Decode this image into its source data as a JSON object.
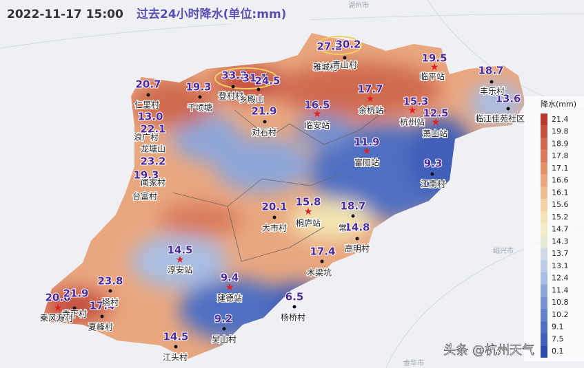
{
  "header": {
    "time": "2022-11-17 15:00",
    "title": "过去24小时降水(单位:mm)"
  },
  "background_labels": [
    "湖州市",
    "绍兴市",
    "金华市"
  ],
  "station_values": [
    "27.2",
    "30.2",
    "19.5",
    "18.7",
    "20.7",
    "19.3",
    "33.3",
    "31.1",
    "24.5",
    "21.9",
    "16.5",
    "17.7",
    "15.3",
    "12.5",
    "13.6",
    "13.0",
    "22.1",
    "11.9",
    "23.2",
    "9.3",
    "19.3",
    "20.1",
    "15.8",
    "18.7",
    "14.8",
    "14.5",
    "17.4",
    "9.4",
    "23.8",
    "20.6",
    "21.9",
    "17.4",
    "6.5",
    "9.2",
    "14.5"
  ],
  "station_names": [
    "雅城村",
    "青山村",
    "临平站",
    "丰乐村",
    "仁里村",
    "千顷塘",
    "登村村",
    "乡殿山",
    "对石村",
    "临安站",
    "余杭站",
    "杭州站",
    "萧山站",
    "临江佳苑社区",
    "浪广村",
    "龙塘山",
    "富阳站",
    "江南村",
    "闻家村",
    "台富村",
    "大市村",
    "桐庐站",
    "常",
    "高明村",
    "淳安站",
    "木梁坑",
    "建德站",
    "塔村",
    "乘风源村",
    "寺下村",
    "夏峰村",
    "杨桥村",
    "吴山村",
    "江头村"
  ],
  "legend": {
    "title": "降水(mm)",
    "levels": [
      "21.4",
      "19.8",
      "18.9",
      "17.8",
      "17.1",
      "16.6",
      "16.1",
      "15.6",
      "15.2",
      "14.7",
      "14.3",
      "13.7",
      "13.1",
      "12.4",
      "11.4",
      "10.8",
      "10.2",
      "9.1",
      "7.5",
      "0.1"
    ]
  },
  "watermark": "头条 @杭州天气"
}
